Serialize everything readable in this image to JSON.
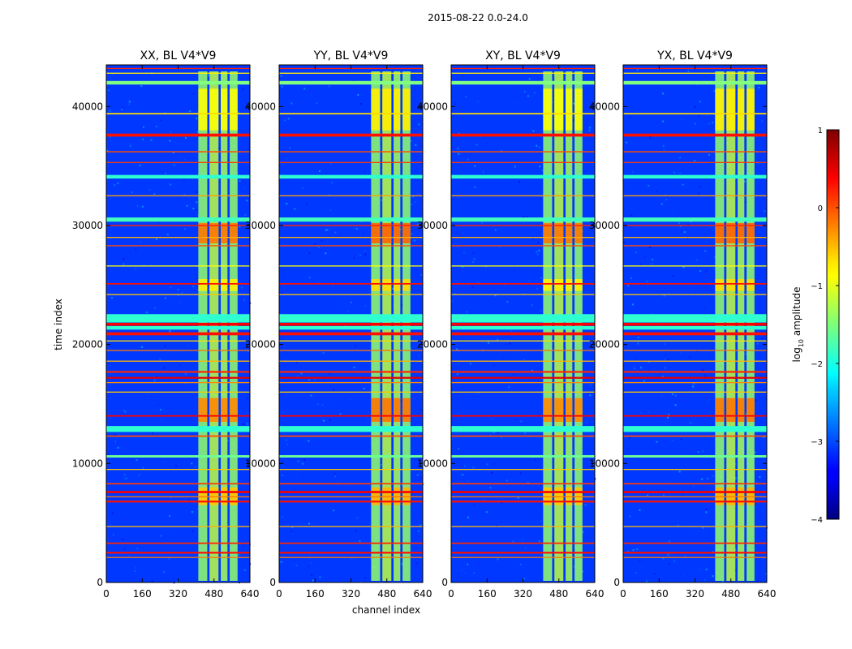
{
  "figure_title": "2015-08-22 0.0-24.0",
  "shared": {
    "xlabel": "channel index",
    "ylabel": "time index",
    "x_ticks": [
      0,
      160,
      320,
      480,
      640
    ],
    "y_ticks": [
      0,
      10000,
      20000,
      30000,
      40000
    ],
    "xlim": [
      0,
      640
    ],
    "ylim": [
      0,
      43500
    ]
  },
  "colorbar": {
    "label": "log",
    "label_sub": "10",
    "label_rest": " amplitude",
    "ticks": [
      {
        "value": 1,
        "label": "1"
      },
      {
        "value": 0,
        "label": "0"
      },
      {
        "value": -1,
        "label": "−1"
      },
      {
        "value": -2,
        "label": "−2"
      },
      {
        "value": -3,
        "label": "−3"
      },
      {
        "value": -4,
        "label": "−4"
      }
    ],
    "range": [
      -4,
      1
    ],
    "colormap": "jet"
  },
  "chart_data": [
    {
      "type": "heatmap",
      "title": "XX, BL V4*V9",
      "xlabel": "",
      "ylabel": "time index",
      "xlim": [
        0,
        640
      ],
      "ylim": [
        0,
        43500
      ]
    },
    {
      "type": "heatmap",
      "title": "YY, BL V4*V9",
      "xlabel": "channel index",
      "ylabel": "",
      "xlim": [
        0,
        640
      ],
      "ylim": [
        0,
        43500
      ]
    },
    {
      "type": "heatmap",
      "title": "XY, BL V4*V9",
      "xlabel": "",
      "ylabel": "",
      "xlim": [
        0,
        640
      ],
      "ylim": [
        0,
        43500
      ]
    },
    {
      "type": "heatmap",
      "title": "YX, BL V4*V9",
      "xlabel": "",
      "ylabel": "",
      "xlim": [
        0,
        640
      ],
      "ylim": [
        0,
        43500
      ]
    }
  ],
  "heatmap_features": {
    "background_level": -3.1,
    "band_columns": [
      {
        "x0": 410,
        "x1": 450,
        "level": -1.4
      },
      {
        "x0": 460,
        "x1": 500,
        "level": -1.2
      },
      {
        "x0": 510,
        "x1": 540,
        "level": -1.3
      },
      {
        "x0": 550,
        "x1": 585,
        "level": -1.4
      }
    ],
    "time_blocks": [
      {
        "t0": 38000,
        "t1": 41500,
        "level": -0.9
      },
      {
        "t0": 28500,
        "t1": 30200,
        "level": -0.2
      },
      {
        "t0": 13500,
        "t1": 15500,
        "level": -0.3
      },
      {
        "t0": 24500,
        "t1": 25500,
        "level": -0.8
      },
      {
        "t0": 6500,
        "t1": 8000,
        "level": -0.6
      }
    ],
    "rfi_lines": [
      {
        "t": 37600,
        "level": 0.3,
        "w": 250
      },
      {
        "t": 39400,
        "level": -0.7,
        "w": 120
      },
      {
        "t": 36200,
        "level": 0.0,
        "w": 100
      },
      {
        "t": 35300,
        "level": 0.1,
        "w": 90
      },
      {
        "t": 34100,
        "level": -1.9,
        "w": 300
      },
      {
        "t": 32500,
        "level": -0.4,
        "w": 90
      },
      {
        "t": 30500,
        "level": -1.8,
        "w": 350
      },
      {
        "t": 30000,
        "level": 0.2,
        "w": 100
      },
      {
        "t": 29000,
        "level": -0.5,
        "w": 90
      },
      {
        "t": 28300,
        "level": 0.0,
        "w": 90
      },
      {
        "t": 26600,
        "level": -0.9,
        "w": 90
      },
      {
        "t": 25100,
        "level": 0.3,
        "w": 120
      },
      {
        "t": 24200,
        "level": -0.6,
        "w": 90
      },
      {
        "t": 22200,
        "level": -1.9,
        "w": 700
      },
      {
        "t": 21700,
        "level": 0.4,
        "w": 250
      },
      {
        "t": 21400,
        "level": -1.9,
        "w": 300
      },
      {
        "t": 20900,
        "level": 0.3,
        "w": 250
      },
      {
        "t": 20300,
        "level": -0.7,
        "w": 90
      },
      {
        "t": 19500,
        "level": -0.2,
        "w": 90
      },
      {
        "t": 18600,
        "level": -0.5,
        "w": 90
      },
      {
        "t": 17700,
        "level": 0.2,
        "w": 150
      },
      {
        "t": 17200,
        "level": 0.5,
        "w": 150
      },
      {
        "t": 16800,
        "level": -0.3,
        "w": 90
      },
      {
        "t": 16000,
        "level": -0.6,
        "w": 90
      },
      {
        "t": 14000,
        "level": 0.4,
        "w": 120
      },
      {
        "t": 12900,
        "level": -1.9,
        "w": 500
      },
      {
        "t": 12300,
        "level": 0.0,
        "w": 120
      },
      {
        "t": 10600,
        "level": -1.6,
        "w": 200
      },
      {
        "t": 9500,
        "level": -0.6,
        "w": 90
      },
      {
        "t": 8300,
        "level": 0.1,
        "w": 120
      },
      {
        "t": 7600,
        "level": 0.4,
        "w": 180
      },
      {
        "t": 7200,
        "level": -0.2,
        "w": 90
      },
      {
        "t": 6800,
        "level": 0.3,
        "w": 150
      },
      {
        "t": 4700,
        "level": -0.5,
        "w": 90
      },
      {
        "t": 3300,
        "level": 0.2,
        "w": 120
      },
      {
        "t": 2500,
        "level": 0.3,
        "w": 150
      },
      {
        "t": 2100,
        "level": -0.2,
        "w": 90
      },
      {
        "t": 42000,
        "level": -1.5,
        "w": 300
      },
      {
        "t": 42800,
        "level": -0.8,
        "w": 90
      },
      {
        "t": 43200,
        "level": 0.2,
        "w": 90
      }
    ]
  }
}
